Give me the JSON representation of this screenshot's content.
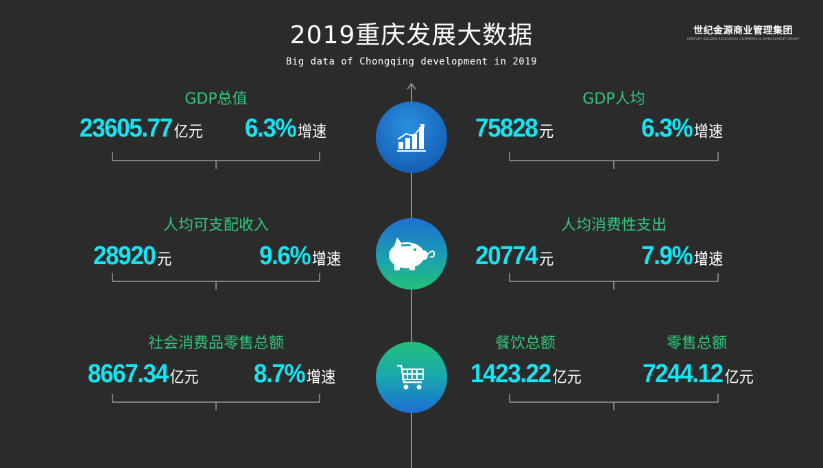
{
  "header": {
    "title": "2019重庆发展大数据",
    "subtitle": "Big data of Chongqing development in 2019"
  },
  "logo": {
    "name": "世纪金源商业管理集团",
    "tagline": "CENTURY GOLDEN RESOURCES COMMERCIAL MANAGEMENT GROUP"
  },
  "colors": {
    "label": "#2fc77a",
    "value": "#16e4f2",
    "background": "#2b2b2b"
  },
  "rows": [
    {
      "icon": "bar-chart-icon",
      "left": {
        "label": "GDP总值",
        "values": [
          {
            "number": "23605.77",
            "unit": "亿元"
          },
          {
            "number": "6.3%",
            "unit": "增速"
          }
        ]
      },
      "right": {
        "label": "GDP人均",
        "values": [
          {
            "number": "75828",
            "unit": "元"
          },
          {
            "number": "6.3%",
            "unit": "增速"
          }
        ]
      }
    },
    {
      "icon": "piggy-bank-icon",
      "left": {
        "label": "人均可支配收入",
        "values": [
          {
            "number": "28920",
            "unit": "元"
          },
          {
            "number": "9.6%",
            "unit": "增速"
          }
        ]
      },
      "right": {
        "label": "人均消费性支出",
        "values": [
          {
            "number": "20774",
            "unit": "元"
          },
          {
            "number": "7.9%",
            "unit": "增速"
          }
        ]
      }
    },
    {
      "icon": "shopping-cart-icon",
      "left": {
        "label": "社会消费品零售总额",
        "values": [
          {
            "number": "8667.34",
            "unit": "亿元"
          },
          {
            "number": "8.7%",
            "unit": "增速"
          }
        ]
      },
      "right": {
        "labels": [
          "餐饮总额",
          "零售总额"
        ],
        "values": [
          {
            "number": "1423.22",
            "unit": "亿元"
          },
          {
            "number": "7244.12",
            "unit": "亿元"
          }
        ]
      }
    }
  ]
}
